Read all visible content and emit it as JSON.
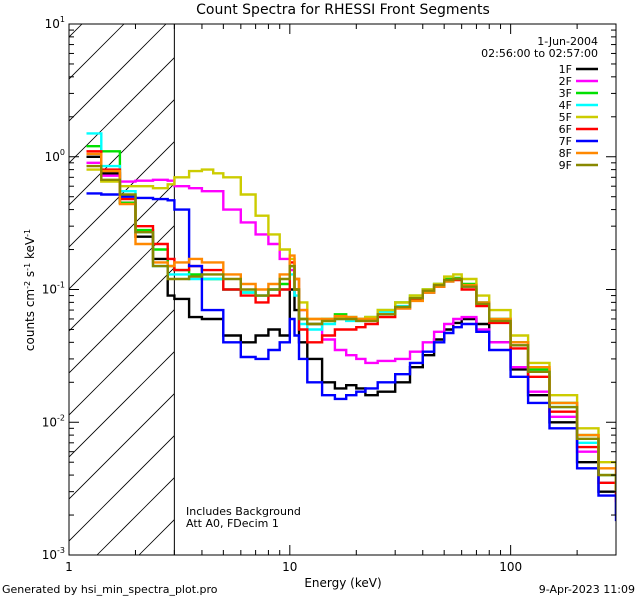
{
  "chart_data": {
    "type": "line",
    "title": "Count Spectra for RHESSI Front Segments",
    "xlabel": "Energy (keV)",
    "ylabel_parts": [
      "counts cm",
      "-2",
      " s",
      "-1",
      " keV",
      "-1"
    ],
    "xscale": "log",
    "yscale": "log",
    "xlim": [
      1,
      300
    ],
    "ylim": [
      0.001,
      10
    ],
    "x_ticks": [
      {
        "value": 1,
        "label": "1"
      },
      {
        "value": 10,
        "label": "10"
      },
      {
        "value": 100,
        "label": "100"
      }
    ],
    "y_ticks": [
      {
        "value": 0.001,
        "base": "10",
        "exp": "-3"
      },
      {
        "value": 0.01,
        "base": "10",
        "exp": "-2"
      },
      {
        "value": 0.1,
        "base": "10",
        "exp": "-1"
      },
      {
        "value": 1,
        "base": "10",
        "exp": "0"
      },
      {
        "value": 10,
        "base": "10",
        "exp": "1"
      }
    ],
    "shaded_region": {
      "x_max": 3.0,
      "style": "diagonal-hatch"
    },
    "annotations": {
      "date": "1-Jun-2004",
      "time_range": "02:56:00 to 02:57:00",
      "note_lines": [
        "Includes Background",
        "Att A0, FDecim 1"
      ]
    },
    "series": [
      {
        "name": "1F",
        "color": "#000000",
        "x": [
          1.2,
          1.4,
          1.7,
          2.0,
          2.4,
          2.8,
          3.0,
          3.5,
          4.0,
          5.0,
          6.0,
          7.0,
          8.0,
          9.0,
          10.0,
          10.5,
          11.0,
          12,
          14,
          16,
          18,
          20,
          22,
          25,
          30,
          35,
          40,
          45,
          50,
          55,
          60,
          70,
          80,
          100,
          120,
          150,
          200,
          250,
          300
        ],
        "values": [
          1.0,
          0.75,
          0.45,
          0.25,
          0.17,
          0.09,
          0.085,
          0.062,
          0.06,
          0.045,
          0.04,
          0.045,
          0.05,
          0.045,
          0.1,
          0.07,
          0.04,
          0.03,
          0.02,
          0.018,
          0.019,
          0.018,
          0.016,
          0.017,
          0.02,
          0.026,
          0.032,
          0.042,
          0.05,
          0.056,
          0.06,
          0.055,
          0.04,
          0.025,
          0.016,
          0.01,
          0.005,
          0.003,
          0.002
        ]
      },
      {
        "name": "2F",
        "color": "#ff00ff",
        "x": [
          1.2,
          1.4,
          1.7,
          2.0,
          2.4,
          2.8,
          3.0,
          3.5,
          4.0,
          5.0,
          6.0,
          7.0,
          8.0,
          9.0,
          10.0,
          10.5,
          11.0,
          12,
          14,
          16,
          18,
          20,
          22,
          25,
          30,
          35,
          40,
          45,
          50,
          55,
          60,
          70,
          80,
          100,
          120,
          150,
          200,
          250,
          300
        ],
        "values": [
          0.9,
          0.72,
          0.65,
          0.66,
          0.67,
          0.66,
          0.6,
          0.58,
          0.55,
          0.4,
          0.32,
          0.26,
          0.22,
          0.17,
          0.14,
          0.12,
          0.07,
          0.055,
          0.042,
          0.035,
          0.032,
          0.03,
          0.028,
          0.029,
          0.03,
          0.034,
          0.04,
          0.048,
          0.055,
          0.06,
          0.062,
          0.05,
          0.04,
          0.026,
          0.017,
          0.011,
          0.006,
          0.0035,
          0.0025
        ]
      },
      {
        "name": "3F",
        "color": "#00e000",
        "x": [
          1.2,
          1.4,
          1.7,
          2.0,
          2.4,
          2.8,
          3.0,
          3.5,
          4.0,
          5.0,
          6.0,
          7.0,
          8.0,
          9.0,
          10.0,
          10.5,
          11.0,
          12,
          14,
          16,
          18,
          20,
          22,
          25,
          30,
          35,
          40,
          45,
          50,
          55,
          60,
          70,
          80,
          100,
          120,
          150,
          200,
          250,
          300
        ],
        "values": [
          1.2,
          1.1,
          0.45,
          0.28,
          0.2,
          0.15,
          0.14,
          0.13,
          0.12,
          0.1,
          0.095,
          0.09,
          0.1,
          0.11,
          0.15,
          0.1,
          0.06,
          0.055,
          0.06,
          0.065,
          0.062,
          0.06,
          0.062,
          0.07,
          0.08,
          0.09,
          0.1,
          0.11,
          0.12,
          0.122,
          0.11,
          0.08,
          0.06,
          0.04,
          0.025,
          0.014,
          0.008,
          0.004,
          0.003
        ]
      },
      {
        "name": "4F",
        "color": "#00ffff",
        "x": [
          1.2,
          1.4,
          1.7,
          2.0,
          2.4,
          2.8,
          3.0,
          3.5,
          4.0,
          5.0,
          6.0,
          7.0,
          8.0,
          9.0,
          10.0,
          10.5,
          11.0,
          12,
          14,
          16,
          18,
          20,
          22,
          25,
          30,
          35,
          40,
          45,
          50,
          55,
          60,
          70,
          80,
          100,
          120,
          150,
          200,
          250,
          300
        ],
        "values": [
          1.5,
          0.85,
          0.55,
          0.27,
          0.15,
          0.13,
          0.13,
          0.12,
          0.12,
          0.1,
          0.095,
          0.09,
          0.1,
          0.1,
          0.13,
          0.09,
          0.055,
          0.05,
          0.055,
          0.06,
          0.058,
          0.058,
          0.06,
          0.068,
          0.075,
          0.085,
          0.095,
          0.105,
          0.115,
          0.12,
          0.105,
          0.08,
          0.06,
          0.038,
          0.024,
          0.013,
          0.007,
          0.0035,
          0.0028
        ]
      },
      {
        "name": "5F",
        "color": "#cccc00",
        "x": [
          1.2,
          1.4,
          1.7,
          2.0,
          2.4,
          2.8,
          3.0,
          3.5,
          4.0,
          4.5,
          5.0,
          6.0,
          7.0,
          8.0,
          9.0,
          10.0,
          10.5,
          11.0,
          12,
          14,
          16,
          18,
          20,
          22,
          25,
          30,
          35,
          40,
          45,
          50,
          55,
          60,
          70,
          80,
          100,
          120,
          150,
          200,
          250,
          300
        ],
        "values": [
          0.8,
          0.65,
          0.6,
          0.6,
          0.58,
          0.62,
          0.7,
          0.78,
          0.8,
          0.75,
          0.7,
          0.52,
          0.36,
          0.26,
          0.2,
          0.17,
          0.12,
          0.08,
          0.06,
          0.058,
          0.062,
          0.06,
          0.06,
          0.062,
          0.07,
          0.08,
          0.09,
          0.1,
          0.11,
          0.125,
          0.13,
          0.12,
          0.09,
          0.07,
          0.045,
          0.028,
          0.016,
          0.009,
          0.005,
          0.003
        ]
      },
      {
        "name": "6F",
        "color": "#ff0000",
        "x": [
          1.2,
          1.4,
          1.7,
          2.0,
          2.4,
          2.8,
          3.0,
          3.5,
          4.0,
          5.0,
          6.0,
          7.0,
          8.0,
          9.0,
          10.0,
          10.5,
          11.0,
          12,
          14,
          16,
          18,
          20,
          22,
          25,
          30,
          35,
          40,
          45,
          50,
          55,
          60,
          70,
          80,
          100,
          120,
          150,
          200,
          250,
          300
        ],
        "values": [
          1.1,
          0.8,
          0.48,
          0.3,
          0.22,
          0.17,
          0.14,
          0.15,
          0.14,
          0.1,
          0.09,
          0.08,
          0.09,
          0.1,
          0.16,
          0.1,
          0.05,
          0.04,
          0.045,
          0.05,
          0.05,
          0.052,
          0.055,
          0.062,
          0.072,
          0.085,
          0.095,
          0.105,
          0.115,
          0.118,
          0.1,
          0.075,
          0.056,
          0.036,
          0.022,
          0.012,
          0.0065,
          0.0035,
          0.0025
        ]
      },
      {
        "name": "7F",
        "color": "#0000ff",
        "x": [
          1.2,
          1.4,
          1.7,
          2.0,
          2.4,
          2.8,
          3.0,
          3.5,
          4.0,
          5.0,
          6.0,
          7.0,
          8.0,
          9.0,
          10.0,
          10.5,
          11.0,
          12,
          14,
          16,
          18,
          20,
          22,
          25,
          30,
          35,
          40,
          45,
          50,
          55,
          60,
          70,
          80,
          100,
          120,
          150,
          200,
          250,
          300
        ],
        "values": [
          0.53,
          0.52,
          0.5,
          0.49,
          0.48,
          0.47,
          0.4,
          0.15,
          0.07,
          0.04,
          0.031,
          0.03,
          0.035,
          0.04,
          0.06,
          0.045,
          0.03,
          0.02,
          0.016,
          0.015,
          0.016,
          0.017,
          0.018,
          0.02,
          0.023,
          0.028,
          0.034,
          0.04,
          0.047,
          0.052,
          0.055,
          0.048,
          0.035,
          0.022,
          0.014,
          0.009,
          0.0045,
          0.0028,
          0.0018
        ]
      },
      {
        "name": "8F",
        "color": "#ff8800",
        "x": [
          1.2,
          1.4,
          1.7,
          2.0,
          2.4,
          2.8,
          3.0,
          3.5,
          4.0,
          5.0,
          6.0,
          7.0,
          8.0,
          9.0,
          10.0,
          10.5,
          11.0,
          12,
          14,
          16,
          18,
          20,
          22,
          25,
          30,
          35,
          40,
          45,
          50,
          55,
          60,
          70,
          80,
          100,
          120,
          150,
          200,
          250,
          300
        ],
        "values": [
          1.05,
          0.78,
          0.44,
          0.22,
          0.16,
          0.15,
          0.16,
          0.17,
          0.16,
          0.13,
          0.11,
          0.1,
          0.11,
          0.13,
          0.18,
          0.12,
          0.07,
          0.06,
          0.06,
          0.063,
          0.062,
          0.06,
          0.06,
          0.065,
          0.072,
          0.082,
          0.095,
          0.105,
          0.115,
          0.12,
          0.108,
          0.08,
          0.06,
          0.04,
          0.026,
          0.014,
          0.008,
          0.0045,
          0.003
        ]
      },
      {
        "name": "9F",
        "color": "#888800",
        "x": [
          1.2,
          1.4,
          1.7,
          2.0,
          2.4,
          2.8,
          3.0,
          3.5,
          4.0,
          5.0,
          6.0,
          7.0,
          8.0,
          9.0,
          10.0,
          10.5,
          11.0,
          12,
          14,
          16,
          18,
          20,
          22,
          25,
          30,
          35,
          40,
          45,
          50,
          55,
          60,
          70,
          80,
          100,
          120,
          150,
          200,
          250,
          300
        ],
        "values": [
          0.85,
          0.67,
          0.52,
          0.27,
          0.15,
          0.12,
          0.12,
          0.125,
          0.13,
          0.12,
          0.1,
          0.09,
          0.1,
          0.12,
          0.15,
          0.1,
          0.06,
          0.055,
          0.058,
          0.06,
          0.06,
          0.058,
          0.058,
          0.065,
          0.074,
          0.086,
          0.098,
          0.108,
          0.118,
          0.12,
          0.105,
          0.078,
          0.058,
          0.038,
          0.024,
          0.013,
          0.0075,
          0.004,
          0.003
        ]
      }
    ]
  },
  "footer": {
    "left": "Generated by hsi_min_spectra_plot.pro",
    "right": "9-Apr-2023 11:09"
  }
}
